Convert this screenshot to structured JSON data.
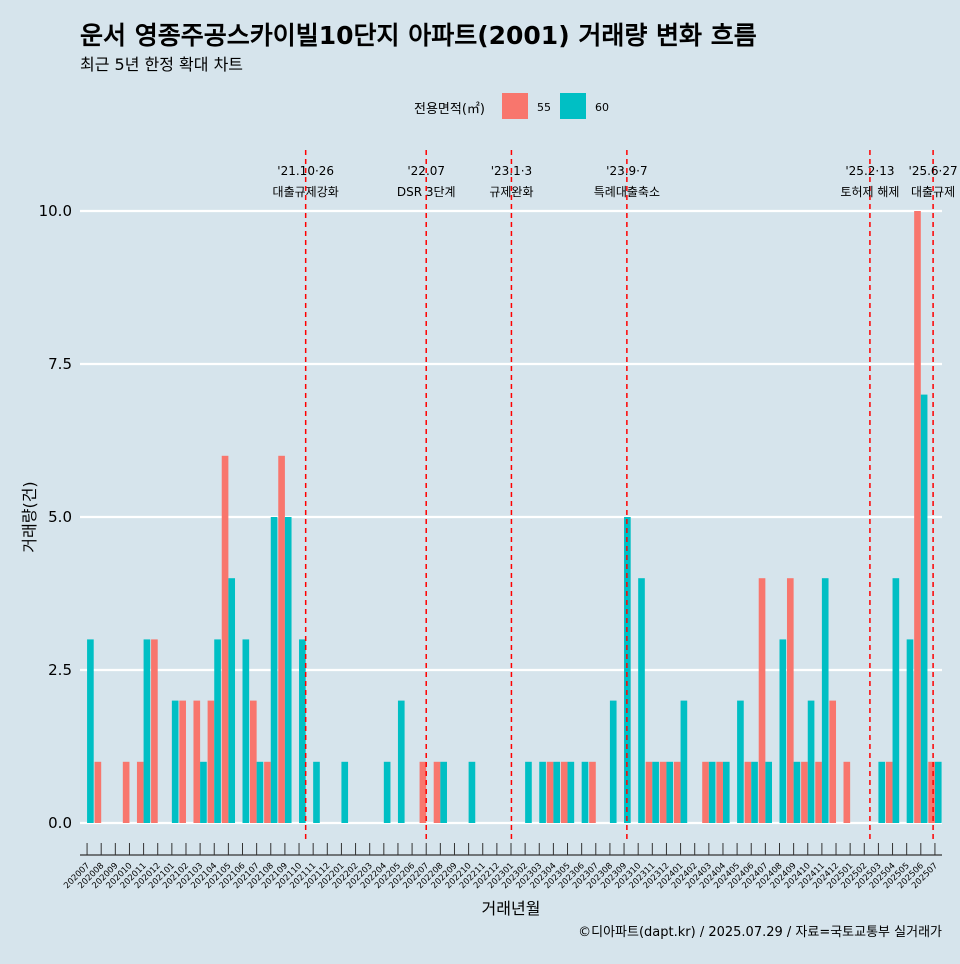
{
  "chart_data": {
    "type": "bar",
    "title": "운서 영종주공스카이빌10단지 아파트(2001) 거래량 변화 흐름",
    "subtitle": "최근 5년 한정 확대 차트",
    "xlabel": "거래년월",
    "ylabel": "거래량(건)",
    "ylim": [
      0,
      10
    ],
    "yticks": [
      "0.0",
      "2.5",
      "5.0",
      "7.5",
      "10.0"
    ],
    "legend": {
      "title": "전용면적(㎡)",
      "position": "top"
    },
    "caption": "©디아파트(dapt.kr) / 2025.07.29 / 자료=국토교통부 실거래가",
    "colors": {
      "s55": "#f8766d",
      "s60": "#00bfc4",
      "event_line": "#ff0000",
      "background": "#d6e4ec",
      "grid": "#ffffff"
    },
    "categories": [
      "202007",
      "202008",
      "202009",
      "202010",
      "202011",
      "202012",
      "202101",
      "202102",
      "202103",
      "202104",
      "202105",
      "202106",
      "202107",
      "202108",
      "202109",
      "202110",
      "202111",
      "202112",
      "202201",
      "202202",
      "202203",
      "202204",
      "202205",
      "202206",
      "202207",
      "202208",
      "202209",
      "202210",
      "202211",
      "202212",
      "202301",
      "202302",
      "202303",
      "202304",
      "202305",
      "202306",
      "202307",
      "202308",
      "202309",
      "202310",
      "202311",
      "202312",
      "202401",
      "202402",
      "202403",
      "202404",
      "202405",
      "202406",
      "202407",
      "202408",
      "202409",
      "202410",
      "202411",
      "202412",
      "202501",
      "202502",
      "202503",
      "202504",
      "202505",
      "202506",
      "202507"
    ],
    "series": [
      {
        "name": "55",
        "values": [
          0,
          1,
          0,
          1,
          1,
          3,
          0,
          2,
          2,
          2,
          6,
          0,
          2,
          1,
          6,
          0,
          0,
          0,
          0,
          0,
          0,
          0,
          0,
          0,
          1,
          1,
          0,
          0,
          0,
          0,
          0,
          0,
          0,
          1,
          1,
          0,
          1,
          0,
          0,
          0,
          1,
          1,
          1,
          0,
          1,
          1,
          0,
          1,
          4,
          0,
          4,
          1,
          1,
          2,
          1,
          0,
          0,
          1,
          0,
          10,
          1
        ]
      },
      {
        "name": "60",
        "values": [
          3,
          0,
          0,
          0,
          3,
          0,
          2,
          0,
          1,
          3,
          4,
          3,
          1,
          5,
          5,
          3,
          1,
          0,
          1,
          0,
          0,
          1,
          2,
          0,
          0,
          1,
          0,
          1,
          0,
          0,
          0,
          1,
          1,
          1,
          1,
          1,
          0,
          2,
          5,
          4,
          1,
          1,
          2,
          0,
          1,
          1,
          2,
          1,
          1,
          3,
          1,
          2,
          4,
          0,
          0,
          0,
          1,
          4,
          3,
          7,
          1
        ]
      }
    ],
    "events": [
      {
        "date": "'21.10·26",
        "text": "대출규제강화",
        "position": 15.47
      },
      {
        "date": "'22.07",
        "text": "DSR 3단계",
        "position": 24.0
      },
      {
        "date": "'23.1·3",
        "text": "규제완화",
        "position": 30.03
      },
      {
        "date": "'23.9·7",
        "text": "특례대출축소",
        "position": 38.2
      },
      {
        "date": "'25.2·13",
        "text": "토허제 해제",
        "position": 55.4
      },
      {
        "date": "'25.6·27",
        "text": "대출규제",
        "position": 59.87
      }
    ]
  }
}
